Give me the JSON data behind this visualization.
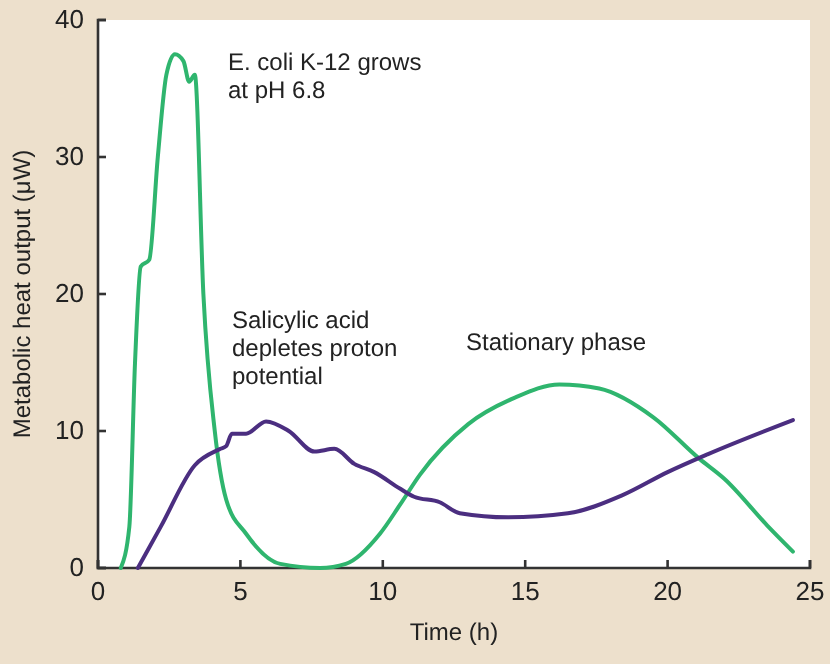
{
  "chart_data": {
    "type": "line",
    "xlabel": "Time (h)",
    "ylabel": "Metabolic heat output (μW)",
    "xlim": [
      0,
      25
    ],
    "ylim": [
      0,
      40
    ],
    "xticks": [
      0,
      5,
      10,
      15,
      20,
      25
    ],
    "yticks": [
      0,
      10,
      20,
      30,
      40
    ],
    "grid": false,
    "marker": "none",
    "line_style": "solid",
    "series": [
      {
        "color": "#2fb56e",
        "x": [
          0.8,
          1.1,
          1.3,
          1.5,
          1.8,
          2.1,
          2.4,
          2.7,
          3.0,
          3.2,
          3.4,
          3.7,
          4.1,
          4.5,
          5.2,
          6.4,
          7.8,
          8.7,
          9.9,
          10.6,
          11.3,
          13.0,
          14.6,
          16.2,
          17.6,
          19.5,
          21.1,
          22.0,
          23.5,
          24.4
        ],
        "values": [
          0,
          3,
          15,
          22,
          22.5,
          30,
          36,
          37.5,
          37,
          35.5,
          36,
          20,
          10,
          5,
          2.5,
          0.3,
          0,
          0.3,
          2.5,
          4.6,
          6.8,
          10.5,
          12.4,
          13.4,
          13.1,
          11,
          8,
          6.5,
          3.1,
          1.2
        ]
      },
      {
        "color": "#4b2e80",
        "x": [
          1.4,
          2.2,
          3.4,
          4.3,
          4.5,
          4.7,
          5.2,
          5.9,
          6.7,
          7.6,
          8.3,
          9.0,
          9.7,
          10.6,
          11.1,
          12.0,
          12.7,
          14.4,
          16.5,
          18.4,
          20.0,
          21.4,
          24.4
        ],
        "values": [
          0,
          3,
          7.5,
          8.7,
          8.9,
          9.8,
          9.8,
          10.7,
          10,
          8.5,
          8.7,
          7.6,
          7,
          5.8,
          5.2,
          4.8,
          4.0,
          3.7,
          4.0,
          5.3,
          7,
          8.3,
          10.8
        ]
      }
    ],
    "annotations": [
      "E. coli K-12 grows\nat pH 6.8",
      "Salicylic acid\ndepletes proton\npotential",
      "Stationary phase"
    ]
  }
}
